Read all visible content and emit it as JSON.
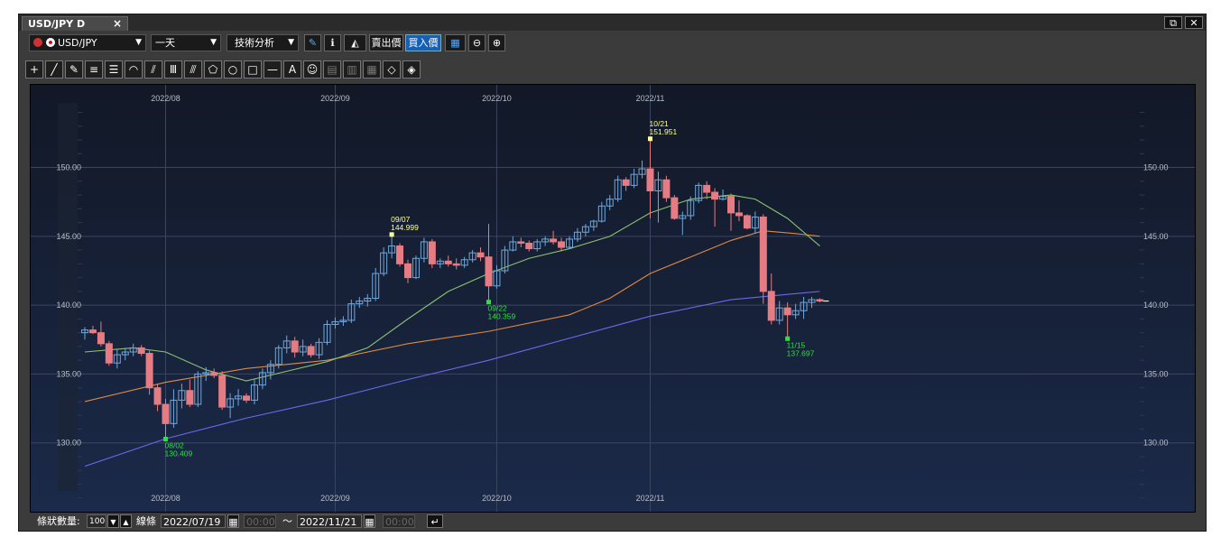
{
  "window": {
    "tab_title": "USD/JPY D",
    "tab_close": "×",
    "restore_btn": "⧉",
    "close_btn": "✕"
  },
  "toolbar": {
    "symbol": "USD/JPY",
    "period": "一天",
    "analysis": "技術分析",
    "bid_label": "賣出價",
    "ask_label": "買入價"
  },
  "drawing_tools": [
    "+",
    "╱",
    "✎",
    "≡",
    "☰",
    "◠",
    "⫽",
    "Ⅲ",
    "⫻",
    "⬠",
    "○",
    "□",
    "—",
    "A",
    "☺",
    "▤",
    "▥",
    "▦",
    "◇",
    "◈"
  ],
  "chart_data": {
    "type": "candlestick",
    "ylim": [
      125.0,
      156.0
    ],
    "y_ticks": [
      "130.00",
      "135.00",
      "140.00",
      "145.00",
      "150.00"
    ],
    "x_labels": [
      "2022/08",
      "2022/09",
      "2022/10",
      "2022/11"
    ],
    "x_label_index": [
      10,
      31,
      51,
      70
    ],
    "candles": [
      [
        138.0,
        138.4,
        137.5,
        138.2
      ],
      [
        138.2,
        138.5,
        137.9,
        138.0
      ],
      [
        138.0,
        138.8,
        137.0,
        137.2
      ],
      [
        137.2,
        137.4,
        135.6,
        135.8
      ],
      [
        135.8,
        136.8,
        135.4,
        136.4
      ],
      [
        136.4,
        136.9,
        136.0,
        136.6
      ],
      [
        136.6,
        137.2,
        136.3,
        136.9
      ],
      [
        136.9,
        137.1,
        136.3,
        136.5
      ],
      [
        136.5,
        136.7,
        133.5,
        134.0
      ],
      [
        134.0,
        134.3,
        132.3,
        132.8
      ],
      [
        132.8,
        133.2,
        130.4,
        131.4
      ],
      [
        131.4,
        133.9,
        131.1,
        133.1
      ],
      [
        133.1,
        134.3,
        132.5,
        133.8
      ],
      [
        133.8,
        134.6,
        132.6,
        132.8
      ],
      [
        132.8,
        135.2,
        132.6,
        135.0
      ],
      [
        135.0,
        135.5,
        134.5,
        135.1
      ],
      [
        135.1,
        135.4,
        134.7,
        134.9
      ],
      [
        134.9,
        135.2,
        132.4,
        132.6
      ],
      [
        132.6,
        133.6,
        131.8,
        133.2
      ],
      [
        133.2,
        133.9,
        132.7,
        133.4
      ],
      [
        133.4,
        133.6,
        132.9,
        133.1
      ],
      [
        133.1,
        134.6,
        132.8,
        134.2
      ],
      [
        134.2,
        135.4,
        133.9,
        135.1
      ],
      [
        135.1,
        136.0,
        134.6,
        135.7
      ],
      [
        135.7,
        137.1,
        135.4,
        136.9
      ],
      [
        136.9,
        137.8,
        136.5,
        137.4
      ],
      [
        137.4,
        137.7,
        136.2,
        136.6
      ],
      [
        136.6,
        137.5,
        136.3,
        137.0
      ],
      [
        137.0,
        137.2,
        136.2,
        136.4
      ],
      [
        136.4,
        137.6,
        136.1,
        137.3
      ],
      [
        137.3,
        138.9,
        137.1,
        138.6
      ],
      [
        138.6,
        139.1,
        138.3,
        138.8
      ],
      [
        138.8,
        139.2,
        138.5,
        138.9
      ],
      [
        138.9,
        140.4,
        138.7,
        140.1
      ],
      [
        140.1,
        140.6,
        139.8,
        140.3
      ],
      [
        140.3,
        140.8,
        139.9,
        140.5
      ],
      [
        140.5,
        142.7,
        140.3,
        142.3
      ],
      [
        142.3,
        144.2,
        142.1,
        143.8
      ],
      [
        143.8,
        145.0,
        143.4,
        144.3
      ],
      [
        144.3,
        144.5,
        142.8,
        143.0
      ],
      [
        143.0,
        143.3,
        141.6,
        142.0
      ],
      [
        142.0,
        143.6,
        141.9,
        143.4
      ],
      [
        143.4,
        144.9,
        143.1,
        144.6
      ],
      [
        144.6,
        144.8,
        142.7,
        143.0
      ],
      [
        143.0,
        143.4,
        142.7,
        143.2
      ],
      [
        143.2,
        143.6,
        142.8,
        143.0
      ],
      [
        143.0,
        143.4,
        142.6,
        142.9
      ],
      [
        142.9,
        143.5,
        142.7,
        143.3
      ],
      [
        143.3,
        144.0,
        143.1,
        143.8
      ],
      [
        143.8,
        144.2,
        143.2,
        143.5
      ],
      [
        143.5,
        145.9,
        140.4,
        141.4
      ],
      [
        141.4,
        142.9,
        141.2,
        142.5
      ],
      [
        142.5,
        144.3,
        142.3,
        144.0
      ],
      [
        144.0,
        145.0,
        143.9,
        144.6
      ],
      [
        144.6,
        144.9,
        144.2,
        144.5
      ],
      [
        144.5,
        144.7,
        143.9,
        144.1
      ],
      [
        144.1,
        144.8,
        143.9,
        144.6
      ],
      [
        144.6,
        145.0,
        144.3,
        144.8
      ],
      [
        144.8,
        145.4,
        144.4,
        144.6
      ],
      [
        144.6,
        144.9,
        143.9,
        144.2
      ],
      [
        144.2,
        145.0,
        144.1,
        144.8
      ],
      [
        144.8,
        145.6,
        144.6,
        145.3
      ],
      [
        145.3,
        145.9,
        145.0,
        145.7
      ],
      [
        145.7,
        146.2,
        145.4,
        146.1
      ],
      [
        146.1,
        147.5,
        146.0,
        147.2
      ],
      [
        147.2,
        148.0,
        146.9,
        147.7
      ],
      [
        147.7,
        149.4,
        147.5,
        149.1
      ],
      [
        149.1,
        149.3,
        148.3,
        148.7
      ],
      [
        148.7,
        149.9,
        148.5,
        149.5
      ],
      [
        149.5,
        150.5,
        149.2,
        149.9
      ],
      [
        149.9,
        151.95,
        146.3,
        148.3
      ],
      [
        148.3,
        149.7,
        146.0,
        149.1
      ],
      [
        149.1,
        149.4,
        147.5,
        147.8
      ],
      [
        147.8,
        148.0,
        146.2,
        146.3
      ],
      [
        146.3,
        146.8,
        145.1,
        146.5
      ],
      [
        146.5,
        147.9,
        146.2,
        147.6
      ],
      [
        147.6,
        148.9,
        147.4,
        148.7
      ],
      [
        148.7,
        149.0,
        147.7,
        148.2
      ],
      [
        148.2,
        148.5,
        145.7,
        147.7
      ],
      [
        147.7,
        148.4,
        147.6,
        147.9
      ],
      [
        147.9,
        148.1,
        145.4,
        146.7
      ],
      [
        146.7,
        147.6,
        146.1,
        146.5
      ],
      [
        146.5,
        146.6,
        145.5,
        145.6
      ],
      [
        145.6,
        146.8,
        145.2,
        146.4
      ],
      [
        146.4,
        146.6,
        140.1,
        141.0
      ],
      [
        141.0,
        142.3,
        138.6,
        138.9
      ],
      [
        138.9,
        140.3,
        138.6,
        139.8
      ],
      [
        139.8,
        140.2,
        137.7,
        139.3
      ],
      [
        139.3,
        140.1,
        139.0,
        139.6
      ],
      [
        139.6,
        140.6,
        139.0,
        140.2
      ],
      [
        140.2,
        140.6,
        139.8,
        140.4
      ],
      [
        140.4,
        140.5,
        140.2,
        140.3
      ]
    ],
    "annotations": [
      {
        "index": 10,
        "price": 130.409,
        "date": "08/02",
        "value": "130.409",
        "type": "low"
      },
      {
        "index": 38,
        "price": 144.999,
        "date": "09/07",
        "value": "144.999",
        "type": "high"
      },
      {
        "index": 50,
        "price": 140.359,
        "date": "09/22",
        "value": "140.359",
        "type": "low"
      },
      {
        "index": 70,
        "price": 151.951,
        "date": "10/21",
        "value": "151.951",
        "type": "high"
      },
      {
        "index": 87,
        "price": 137.697,
        "date": "11/15",
        "value": "137.697",
        "type": "low"
      }
    ],
    "ma_short": [
      [
        0,
        136.6
      ],
      [
        6,
        136.9
      ],
      [
        10,
        136.6
      ],
      [
        15,
        135.3
      ],
      [
        20,
        134.5
      ],
      [
        25,
        135.2
      ],
      [
        30,
        135.9
      ],
      [
        35,
        136.9
      ],
      [
        40,
        139.0
      ],
      [
        45,
        141.0
      ],
      [
        50,
        142.3
      ],
      [
        55,
        143.4
      ],
      [
        60,
        144.1
      ],
      [
        65,
        145.0
      ],
      [
        70,
        146.7
      ],
      [
        75,
        147.7
      ],
      [
        80,
        148.0
      ],
      [
        83,
        147.7
      ],
      [
        87,
        146.3
      ],
      [
        91,
        144.3
      ]
    ],
    "ma_mid": [
      [
        0,
        133.0
      ],
      [
        10,
        134.4
      ],
      [
        20,
        135.4
      ],
      [
        30,
        136.0
      ],
      [
        40,
        137.2
      ],
      [
        50,
        138.1
      ],
      [
        60,
        139.3
      ],
      [
        65,
        140.5
      ],
      [
        70,
        142.3
      ],
      [
        75,
        143.5
      ],
      [
        80,
        144.7
      ],
      [
        84,
        145.4
      ],
      [
        88,
        145.2
      ],
      [
        91,
        145.0
      ]
    ],
    "ma_long": [
      [
        0,
        128.3
      ],
      [
        10,
        130.3
      ],
      [
        20,
        131.8
      ],
      [
        30,
        133.1
      ],
      [
        40,
        134.6
      ],
      [
        50,
        136.0
      ],
      [
        60,
        137.6
      ],
      [
        70,
        139.2
      ],
      [
        80,
        140.4
      ],
      [
        91,
        141.0
      ]
    ],
    "colors": {
      "up": "#6fa8dc",
      "down": "#e67c83",
      "ma_short": "#8dc26f",
      "ma_mid": "#e08a40",
      "ma_long": "#6a6ae8",
      "grid": "#3a4560",
      "label": "#b8bec8",
      "high_ann": "#ffff99",
      "low_ann": "#33dd44"
    }
  },
  "bottom": {
    "count_label": "條狀數量:",
    "count_value": "100",
    "line_label": "線條",
    "start_date": "2022/07/19",
    "start_time": "00:00",
    "tilde": "～",
    "end_date": "2022/11/21",
    "end_time": "00:00"
  }
}
